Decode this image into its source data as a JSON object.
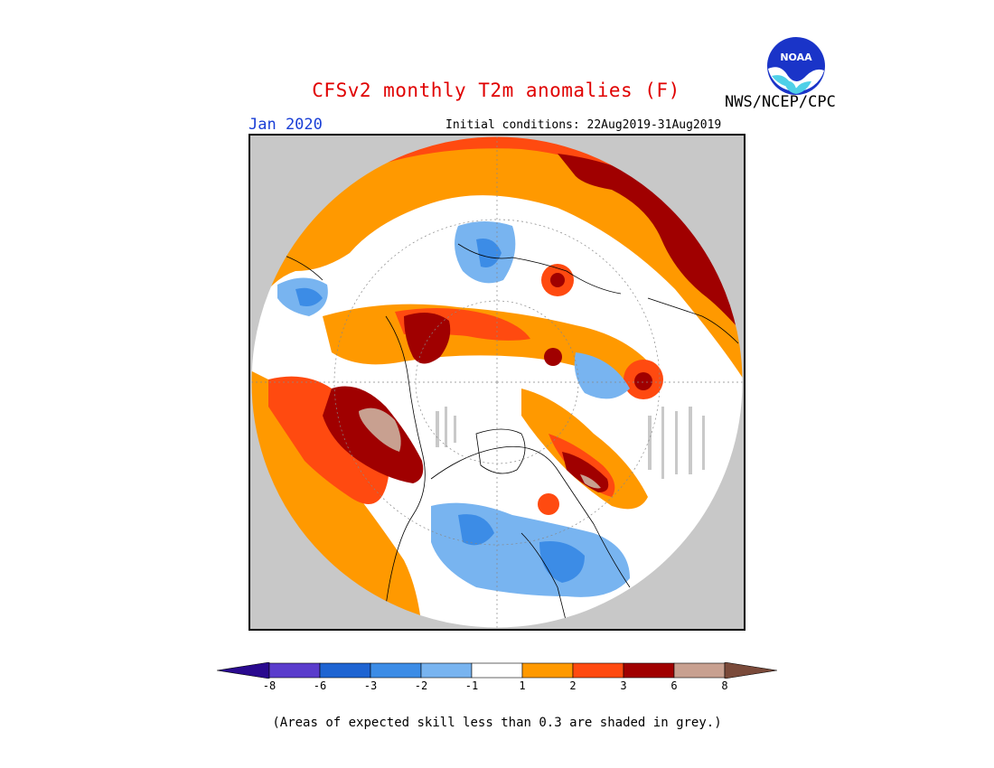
{
  "title": "CFSv2 monthly T2m anomalies (F)",
  "month": "Jan 2020",
  "initial_conditions": "Initial conditions: 22Aug2019-31Aug2019",
  "agency": "NWS/NCEP/CPC",
  "logo_text": "NOAA",
  "colorbar": {
    "colors": [
      "#2a0a8f",
      "#5a3ccc",
      "#1e64d2",
      "#3c8ce6",
      "#78b4f0",
      "#ffffff",
      "#ff9900",
      "#ff4a10",
      "#a00000",
      "#c8a090",
      "#7a4a3a"
    ],
    "labels": [
      "-8",
      "-6",
      "-3",
      "-2",
      "-1",
      "1",
      "2",
      "3",
      "6",
      "8"
    ]
  },
  "footnote": "(Areas of expected skill less than 0.3 are shaded in grey.)",
  "map": {
    "projection": "north-polar-stereographic",
    "variable": "2m temperature anomaly",
    "units": "F",
    "skill_mask_color": "#c0c0c0"
  }
}
